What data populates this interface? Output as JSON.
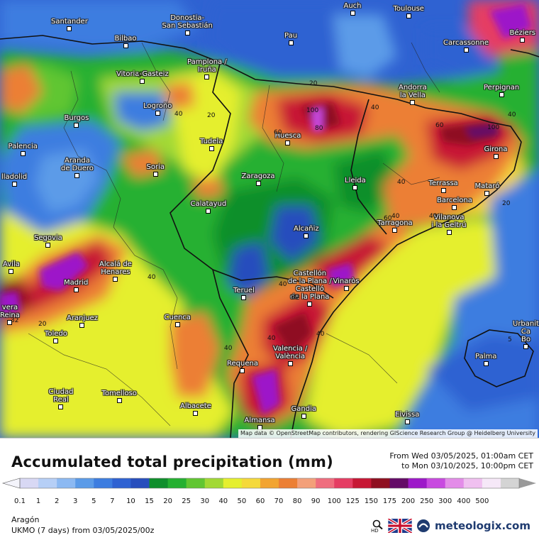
{
  "map": {
    "cities": [
      {
        "name": "Santander"
      },
      {
        "name": "Bilbao"
      },
      {
        "name": "Donostia-\nSan Sebastián"
      },
      {
        "name": "Pau"
      },
      {
        "name": "Auch"
      },
      {
        "name": "Toulouse"
      },
      {
        "name": "Carcassonne"
      },
      {
        "name": "Béziers"
      },
      {
        "name": "Vitoria-Gasteiz"
      },
      {
        "name": "Pamplona /\nIruña"
      },
      {
        "name": "Logroño"
      },
      {
        "name": "Andorra\nla Vella"
      },
      {
        "name": "Perpignan"
      },
      {
        "name": "Burgos"
      },
      {
        "name": "Huesca"
      },
      {
        "name": "Palencia"
      },
      {
        "name": "Tudela"
      },
      {
        "name": "Girona"
      },
      {
        "name": "Aranda\nde Duero"
      },
      {
        "name": "Soria"
      },
      {
        "name": "lladolid"
      },
      {
        "name": "Zaragoza"
      },
      {
        "name": "Lleida"
      },
      {
        "name": "Terrassa"
      },
      {
        "name": "Mataró"
      },
      {
        "name": "Barcelona"
      },
      {
        "name": "Calatayud"
      },
      {
        "name": "Tarragona"
      },
      {
        "name": "Vilanova\ni la Geltrú"
      },
      {
        "name": "Alcañiz"
      },
      {
        "name": "Segovia"
      },
      {
        "name": "Avila"
      },
      {
        "name": "Alcalá de\nHenares"
      },
      {
        "name": "Madrid"
      },
      {
        "name": "Vinaròs"
      },
      {
        "name": "Teruel"
      },
      {
        "name": "Castellón\nde la Plana /\nCastelló\nde la Plana"
      },
      {
        "name": "vera\nReina"
      },
      {
        "name": "Aranjuez"
      },
      {
        "name": "Cuenca"
      },
      {
        "name": "Toledo"
      },
      {
        "name": "Valencia /\nValència"
      },
      {
        "name": "Requena"
      },
      {
        "name": "Urbanit\nCa\nBo"
      },
      {
        "name": "Palma"
      },
      {
        "name": "Tomelloso"
      },
      {
        "name": "Ciudad\nReal"
      },
      {
        "name": "Albacete"
      },
      {
        "name": "Gandia"
      },
      {
        "name": "Almansa"
      },
      {
        "name": "Eivissa"
      }
    ],
    "contour_labels": [
      "5",
      "20",
      "40",
      "60",
      "80",
      "100",
      "40",
      "20",
      "60",
      "40",
      "40",
      "40",
      "20",
      "80",
      "100",
      "40",
      "40",
      "60",
      "40",
      "40",
      "5",
      "20",
      "32",
      "40",
      "40",
      "5"
    ],
    "attribution": "Map data © OpenStreetMap contributors, rendering GIScience Research Group @ Heidelberg University"
  },
  "legend": {
    "title": "Accumulated total precipitation (mm)",
    "period_from": "From Wed 03/05/2025, 01:00am CET",
    "period_to": "to Mon 03/10/2025, 10:00pm CET",
    "levels": [
      "0.1",
      "1",
      "2",
      "3",
      "5",
      "7",
      "10",
      "15",
      "20",
      "25",
      "30",
      "40",
      "50",
      "60",
      "70",
      "80",
      "90",
      "100",
      "125",
      "150",
      "175",
      "200",
      "250",
      "300",
      "400",
      "500"
    ],
    "colors": [
      "#d8d8f4",
      "#b6cff6",
      "#8cb9f2",
      "#5b9be8",
      "#3d7de0",
      "#2f62d2",
      "#274ebd",
      "#0f8f2c",
      "#25b031",
      "#61c632",
      "#a2d934",
      "#e5ef2f",
      "#f5d93a",
      "#f2a430",
      "#ec7f34",
      "#f3a07a",
      "#ef6d7e",
      "#e53d63",
      "#c71734",
      "#8f0f20",
      "#640b67",
      "#9d19c9",
      "#c84ae0",
      "#e38ce8",
      "#f0c0f0",
      "#f6e8f8",
      "#d4d4d4"
    ],
    "region": "Aragón",
    "model": "UKMO (7 days) from  03/05/2025/00z",
    "brand": "meteologix.com",
    "hd_label": "HD"
  }
}
